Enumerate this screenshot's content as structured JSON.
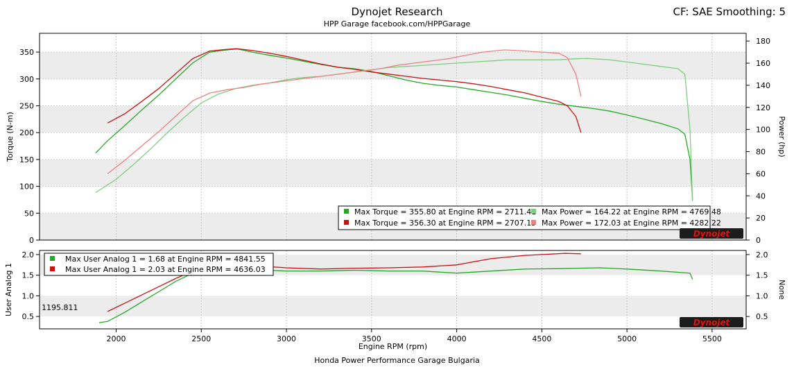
{
  "header": {
    "title": "Dynojet Research",
    "subtitle": "HPP Garage  facebook.com/HPPGarage",
    "correction": "CF: SAE Smoothing: 5"
  },
  "footer": "Honda Power Performance Garage Bulgaria",
  "cursor_readout": "1195.811",
  "logo_text": "Dynojet",
  "colors": {
    "run1": "#22aa22",
    "run1_light": "#7fce7f",
    "run2": "#cc1111",
    "run2_light": "#ee8080",
    "band": "#ececec"
  },
  "chart_data": [
    {
      "type": "line",
      "xlabel": "",
      "ylabel": "Torque (N-m)",
      "y2label": "Power (hp)",
      "xlim": [
        1550,
        5700
      ],
      "ylim": [
        0,
        385
      ],
      "y2lim": [
        0,
        187
      ],
      "yticks": [
        0,
        50,
        100,
        150,
        200,
        250,
        300,
        350
      ],
      "y2ticks": [
        0,
        20,
        40,
        60,
        80,
        100,
        120,
        140,
        160,
        180
      ],
      "legend": {
        "position": "bottom-right",
        "entries": [
          {
            "text": "Max Torque = 355.80 at Engine RPM = 2711.41",
            "color": "#22aa22"
          },
          {
            "text": "Max Torque = 356.30 at Engine RPM = 2707.15",
            "color": "#cc1111"
          },
          {
            "text": "Max Power = 164.22 at Engine RPM = 4769.48",
            "color": "#7fce7f"
          },
          {
            "text": "Max Power = 172.03 at Engine RPM = 4282.22",
            "color": "#ee8080"
          }
        ]
      },
      "series": [
        {
          "axis": "left",
          "color": "#22aa22",
          "x": [
            1880,
            1950,
            2050,
            2150,
            2250,
            2350,
            2450,
            2550,
            2650,
            2711,
            2800,
            2900,
            3000,
            3100,
            3200,
            3300,
            3400,
            3500,
            3600,
            3700,
            3800,
            3900,
            4000,
            4100,
            4200,
            4300,
            4400,
            4500,
            4600,
            4700,
            4800,
            4900,
            5000,
            5100,
            5200,
            5300,
            5340,
            5370,
            5385
          ],
          "values": [
            162,
            185,
            213,
            242,
            270,
            300,
            330,
            350,
            354,
            355.8,
            350,
            344,
            339,
            333,
            327,
            322,
            319,
            314,
            306,
            298,
            292,
            288,
            285,
            280,
            275,
            270,
            264,
            258,
            253,
            249,
            245,
            240,
            233,
            225,
            217,
            207,
            197,
            150,
            75
          ]
        },
        {
          "axis": "left",
          "color": "#cc1111",
          "x": [
            1950,
            2050,
            2150,
            2250,
            2350,
            2450,
            2550,
            2650,
            2707,
            2800,
            2900,
            3000,
            3100,
            3200,
            3300,
            3400,
            3500,
            3600,
            3700,
            3800,
            3900,
            4000,
            4100,
            4200,
            4300,
            4400,
            4500,
            4600,
            4650,
            4700,
            4730
          ],
          "values": [
            218,
            235,
            258,
            282,
            310,
            338,
            352,
            355,
            356.3,
            353,
            348,
            342,
            335,
            328,
            322,
            318,
            313,
            309,
            305,
            301,
            298,
            295,
            291,
            286,
            280,
            274,
            266,
            258,
            250,
            230,
            200
          ]
        },
        {
          "axis": "right",
          "color": "#7fce7f",
          "x": [
            1880,
            2000,
            2100,
            2200,
            2300,
            2400,
            2500,
            2600,
            2700,
            2800,
            2900,
            3000,
            3100,
            3200,
            3300,
            3400,
            3500,
            3600,
            3700,
            3800,
            3900,
            4000,
            4100,
            4200,
            4300,
            4400,
            4500,
            4600,
            4700,
            4769,
            4900,
            5000,
            5100,
            5200,
            5300,
            5340,
            5370,
            5385
          ],
          "values": [
            43,
            55,
            68,
            82,
            97,
            111,
            124,
            132,
            137,
            140,
            142,
            145,
            147,
            148,
            150,
            152,
            154,
            156,
            157,
            158,
            159,
            160,
            161,
            162,
            163,
            163,
            163,
            163,
            164,
            164.2,
            163,
            161,
            159,
            157,
            155,
            150,
            100,
            35
          ]
        },
        {
          "axis": "right",
          "color": "#ee8080",
          "x": [
            1950,
            2050,
            2150,
            2250,
            2350,
            2450,
            2550,
            2650,
            2750,
            2850,
            2950,
            3050,
            3150,
            3250,
            3350,
            3450,
            3550,
            3650,
            3750,
            3850,
            3950,
            4050,
            4150,
            4282,
            4400,
            4500,
            4600,
            4650,
            4700,
            4730
          ],
          "values": [
            60,
            72,
            85,
            98,
            112,
            126,
            133,
            136,
            138,
            141,
            143,
            145,
            147,
            149,
            151,
            153,
            155,
            158,
            160,
            162,
            164,
            167,
            170,
            172,
            171,
            170,
            169,
            165,
            150,
            130
          ]
        }
      ]
    },
    {
      "type": "line",
      "xlabel": "Engine RPM (rpm)",
      "ylabel": "User Analog 1",
      "y2label": "None",
      "xlim": [
        1550,
        5700
      ],
      "ylim": [
        0.2,
        2.1
      ],
      "yticks": [
        0.5,
        1.0,
        1.5,
        2.0
      ],
      "xticks": [
        2000,
        2500,
        3000,
        3500,
        4000,
        4500,
        5000,
        5500
      ],
      "legend": {
        "position": "top-left",
        "entries": [
          {
            "text": "Max User Analog 1 = 1.68 at Engine RPM = 4841.55",
            "color": "#22aa22"
          },
          {
            "text": "Max User Analog 1 = 2.03 at Engine RPM = 4636.03",
            "color": "#cc1111"
          }
        ]
      },
      "series": [
        {
          "color": "#22aa22",
          "x": [
            1900,
            1950,
            2050,
            2150,
            2250,
            2350,
            2450,
            2550,
            2650,
            2750,
            2850,
            3000,
            3200,
            3400,
            3600,
            3800,
            4000,
            4200,
            4400,
            4600,
            4841,
            5000,
            5200,
            5300,
            5370,
            5385
          ],
          "values": [
            0.35,
            0.38,
            0.6,
            0.85,
            1.1,
            1.35,
            1.55,
            1.62,
            1.6,
            1.62,
            1.63,
            1.6,
            1.6,
            1.62,
            1.6,
            1.6,
            1.55,
            1.6,
            1.65,
            1.66,
            1.68,
            1.65,
            1.6,
            1.57,
            1.55,
            1.4
          ]
        },
        {
          "color": "#cc1111",
          "x": [
            1950,
            2050,
            2150,
            2250,
            2350,
            2450,
            2550,
            2650,
            2750,
            2850,
            3000,
            3200,
            3400,
            3600,
            3800,
            4000,
            4200,
            4400,
            4636,
            4730
          ],
          "values": [
            0.62,
            0.82,
            1.02,
            1.22,
            1.42,
            1.6,
            1.7,
            1.74,
            1.74,
            1.72,
            1.68,
            1.65,
            1.67,
            1.68,
            1.7,
            1.75,
            1.9,
            1.98,
            2.03,
            2.02
          ]
        }
      ]
    }
  ]
}
